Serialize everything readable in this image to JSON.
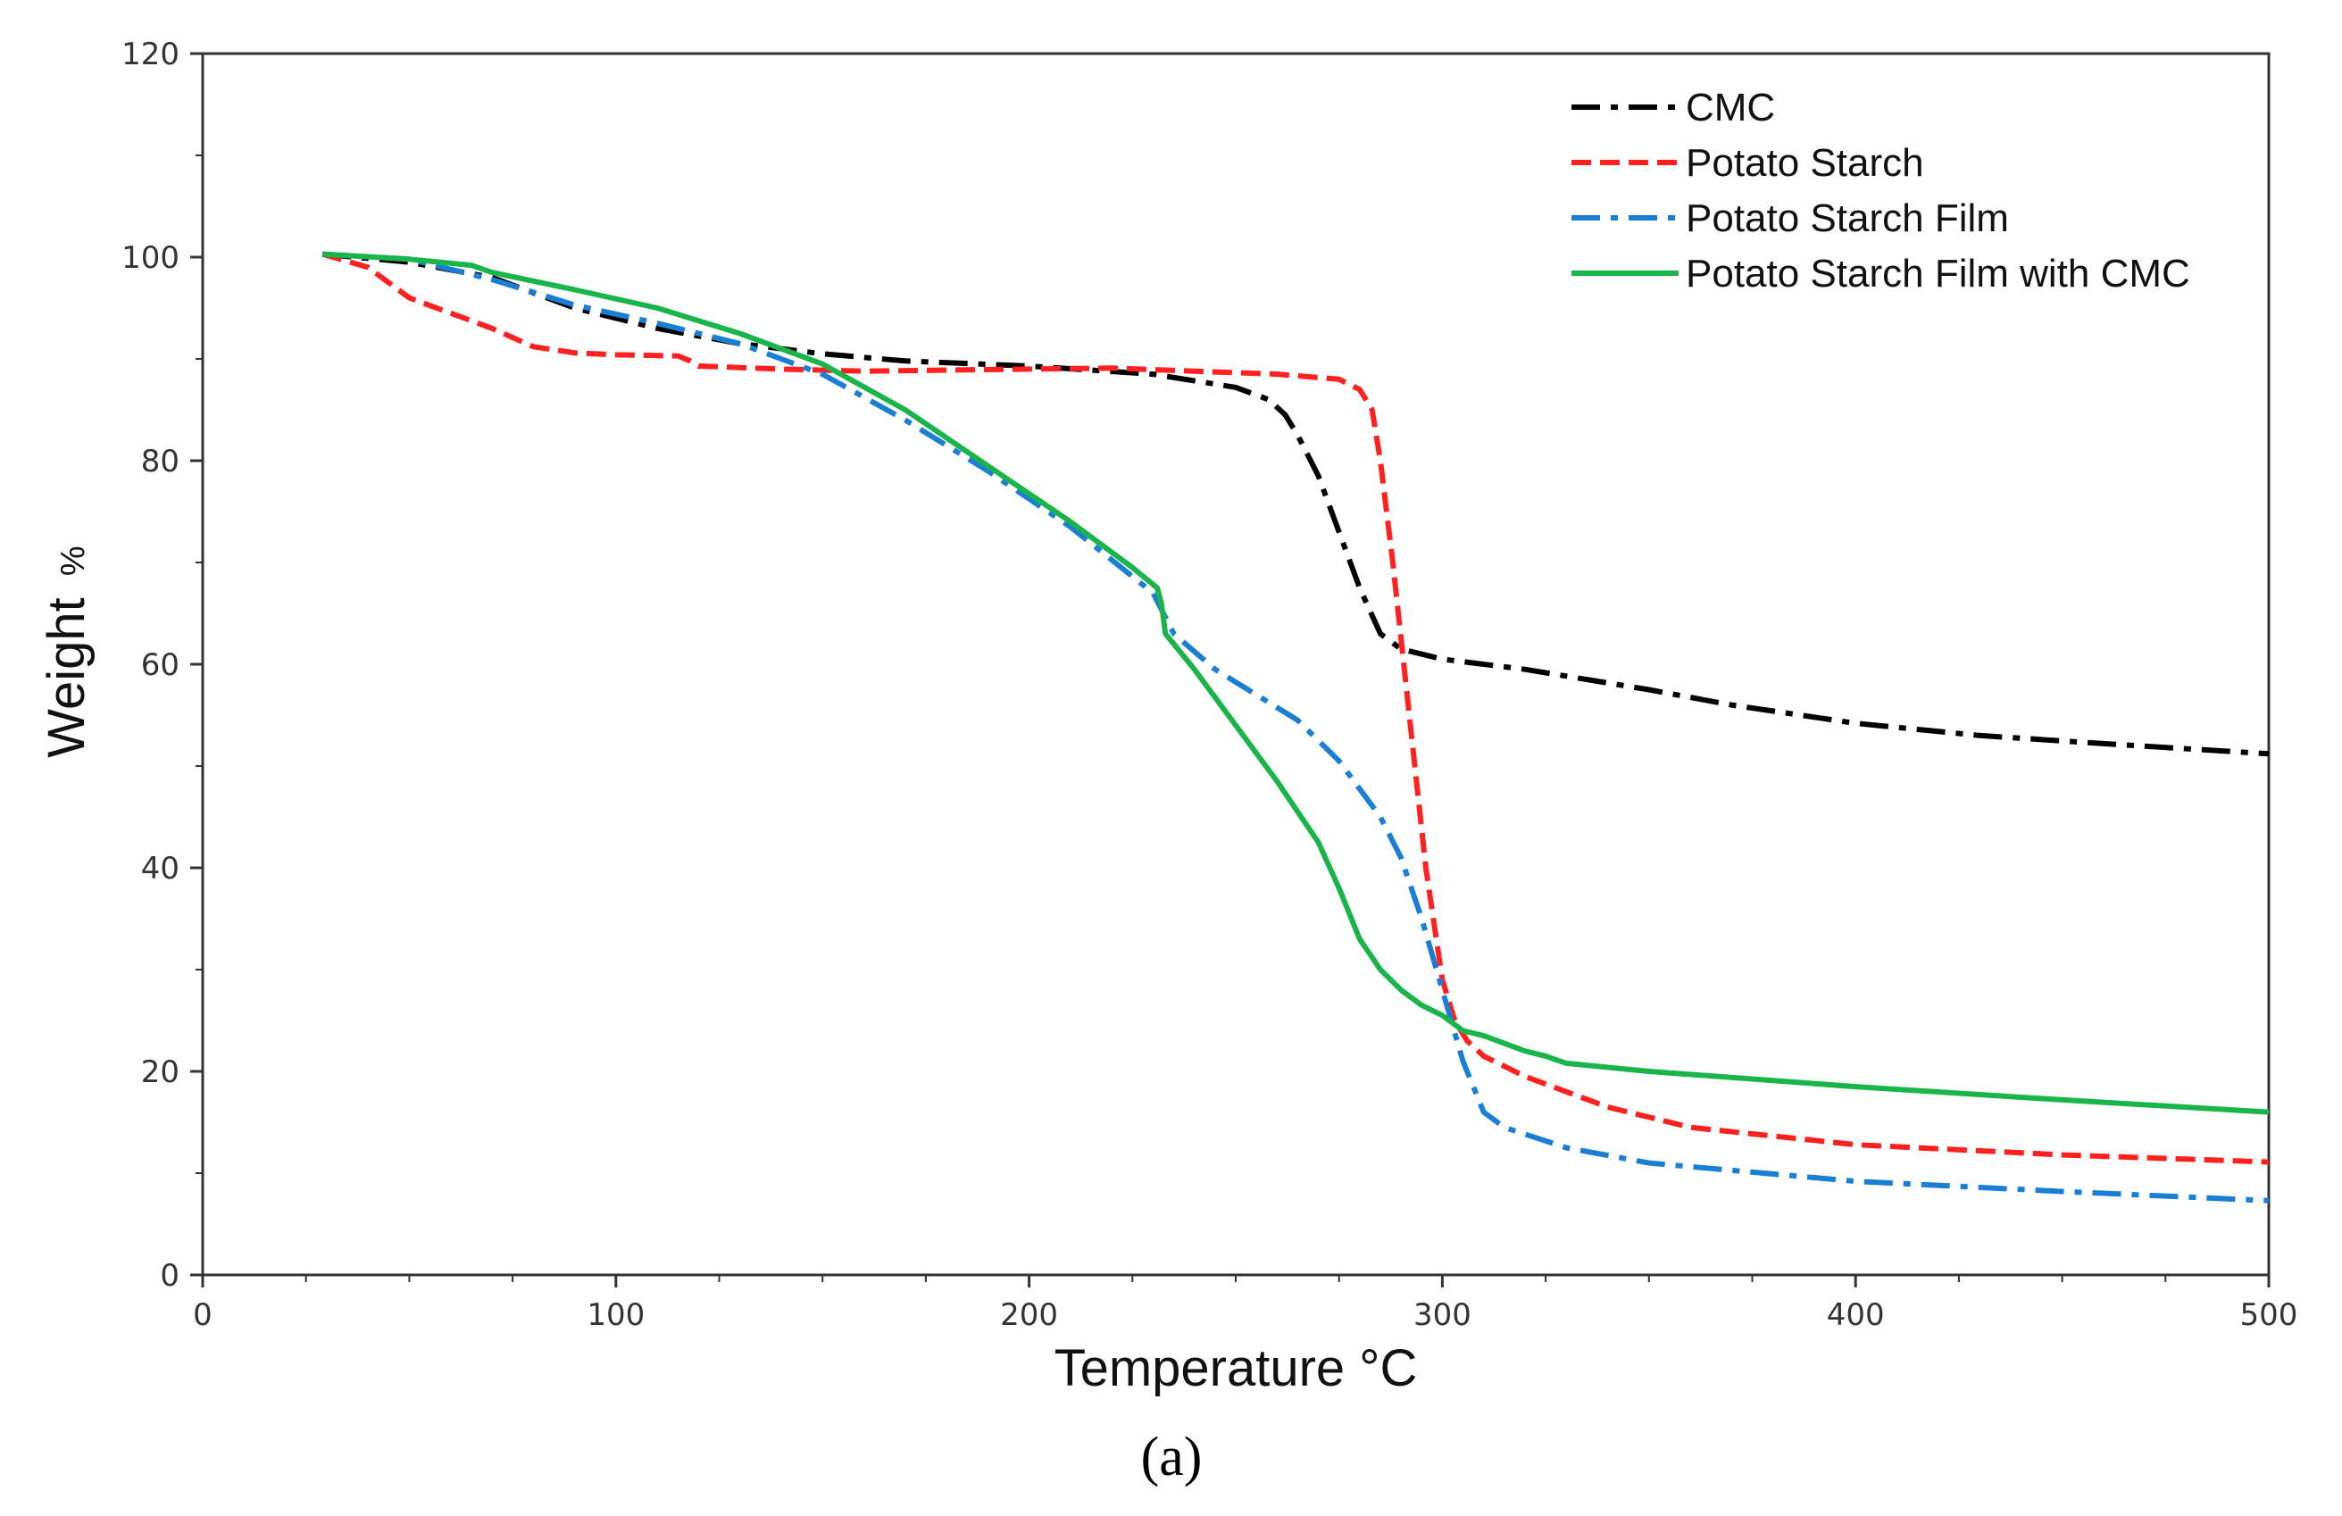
{
  "chart_data": {
    "type": "line",
    "title": "",
    "xlabel": "Temperature °C",
    "ylabel_main": "Weight",
    "ylabel_unit": "%",
    "xlim": [
      0,
      500
    ],
    "ylim": [
      0,
      120
    ],
    "xticks": [
      0,
      100,
      200,
      300,
      400,
      500
    ],
    "yticks": [
      0,
      20,
      40,
      60,
      80,
      100,
      120
    ],
    "xtick_labels": [
      "0",
      "100",
      "200",
      "300",
      "400",
      "500"
    ],
    "ytick_labels": [
      "0",
      "20",
      "40",
      "60",
      "80",
      "100",
      "120"
    ],
    "grid": false,
    "legend_position": "top-right",
    "series": [
      {
        "name": "CMC",
        "color": "#000000",
        "dash": "dashdot",
        "x": [
          29,
          50,
          70,
          90,
          110,
          130,
          150,
          170,
          200,
          230,
          250,
          258,
          262,
          265,
          270,
          275,
          280,
          285,
          290,
          300,
          320,
          350,
          370,
          400,
          430,
          460,
          500
        ],
        "y": [
          100.3,
          99.5,
          98,
          95,
          93,
          91.5,
          90.5,
          89.8,
          89.3,
          88.5,
          87.2,
          86,
          84.5,
          82.5,
          78.5,
          73,
          67.5,
          63,
          61.5,
          60.5,
          59.5,
          57.5,
          56,
          54.2,
          53,
          52.2,
          51.2
        ]
      },
      {
        "name": "Potato Starch",
        "color": "#ff2020",
        "dash": "dash",
        "x": [
          29,
          40,
          50,
          60,
          70,
          80,
          90,
          100,
          115,
          118,
          120,
          140,
          160,
          200,
          220,
          240,
          260,
          275,
          280,
          283,
          285,
          288,
          292,
          296,
          300,
          303,
          306,
          310,
          320,
          340,
          360,
          400,
          450,
          500
        ],
        "y": [
          100.3,
          99,
          96,
          94.5,
          93,
          91.2,
          90.6,
          90.4,
          90.3,
          89.8,
          89.3,
          89,
          88.8,
          89,
          89.1,
          88.8,
          88.5,
          88,
          87,
          85,
          80,
          70,
          55,
          40,
          29,
          25,
          23,
          21.5,
          19.5,
          16.5,
          14.5,
          12.8,
          11.8,
          11.1
        ]
      },
      {
        "name": "Potato Starch Film",
        "color": "#1a7fd4",
        "dash": "dashdot",
        "x": [
          29,
          50,
          70,
          90,
          110,
          130,
          150,
          170,
          190,
          210,
          230,
          235,
          245,
          255,
          265,
          275,
          285,
          290,
          295,
          300,
          305,
          310,
          315,
          330,
          350,
          400,
          450,
          500
        ],
        "y": [
          100.3,
          99.8,
          97.8,
          95.3,
          93.5,
          91.5,
          88.5,
          84,
          79,
          73.5,
          67,
          63,
          59.5,
          57,
          54.5,
          50.5,
          45,
          41,
          35,
          28,
          21,
          16,
          14.5,
          12.5,
          11,
          9.2,
          8.2,
          7.3
        ]
      },
      {
        "name": "Potato Starch Film with CMC",
        "color": "#19b44a",
        "dash": "solid",
        "x": [
          29,
          50,
          65,
          70,
          90,
          110,
          130,
          150,
          170,
          190,
          210,
          225,
          231,
          232,
          233,
          240,
          250,
          260,
          270,
          275,
          280,
          285,
          290,
          295,
          300,
          305,
          310,
          320,
          325,
          330,
          350,
          400,
          450,
          500
        ],
        "y": [
          100.3,
          99.8,
          99.2,
          98.5,
          96.8,
          95,
          92.5,
          89.5,
          85,
          79.5,
          74,
          69.5,
          67.5,
          66,
          63,
          59.5,
          54,
          48.5,
          42.5,
          38,
          33,
          30,
          28,
          26.5,
          25.5,
          24,
          23.5,
          22,
          21.5,
          20.8,
          20,
          18.5,
          17.2,
          16
        ]
      }
    ]
  },
  "caption": "(a)"
}
